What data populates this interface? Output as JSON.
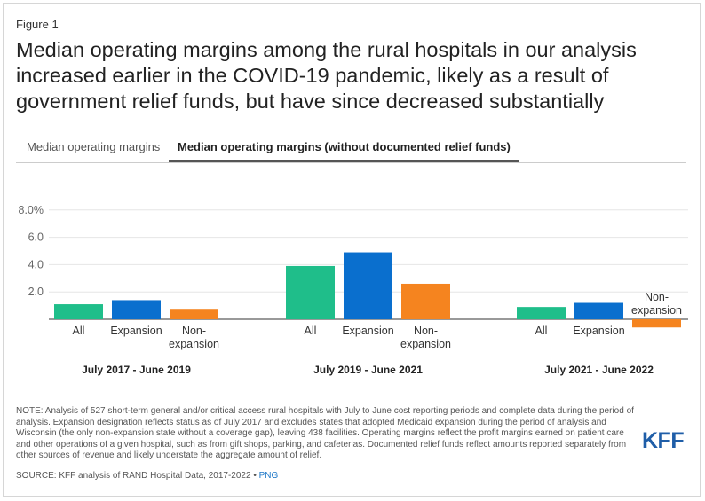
{
  "figure_label": "Figure 1",
  "title": "Median operating margins among the rural hospitals in our analysis increased earlier in the COVID-19 pandemic, likely as a result of government relief funds, but have since decreased substantially",
  "tabs": [
    {
      "label": "Median operating margins",
      "active": false
    },
    {
      "label": "Median operating margins (without documented relief funds)",
      "active": true
    }
  ],
  "chart_data": {
    "type": "bar",
    "y_ticks": [
      "8.0%",
      "6.0",
      "4.0",
      "2.0"
    ],
    "y_tick_values": [
      8,
      6,
      4,
      2
    ],
    "ylim": [
      -0.7,
      8.0
    ],
    "series_colors": {
      "All": "#1fbe8a",
      "Expansion": "#0a6fce",
      "Non-expansion": "#f5841f"
    },
    "groups": [
      {
        "label": "July 2017 - June 2019",
        "bars": [
          {
            "name": "All",
            "label": "All",
            "value": 1.1
          },
          {
            "name": "Expansion",
            "label": "Expansion",
            "value": 1.4
          },
          {
            "name": "Non-expansion",
            "label": "Non-\nexpansion",
            "value": 0.7
          }
        ]
      },
      {
        "label": "July 2019 - June 2021",
        "bars": [
          {
            "name": "All",
            "label": "All",
            "value": 3.9
          },
          {
            "name": "Expansion",
            "label": "Expansion",
            "value": 4.9
          },
          {
            "name": "Non-expansion",
            "label": "Non-\nexpansion",
            "value": 2.6
          }
        ]
      },
      {
        "label": "July 2021 - June 2022",
        "bars": [
          {
            "name": "All",
            "label": "All",
            "value": 0.9
          },
          {
            "name": "Expansion",
            "label": "Expansion",
            "value": 1.2
          },
          {
            "name": "Non-expansion",
            "label": "Non-\nexpansion",
            "value": -0.6
          }
        ]
      }
    ]
  },
  "note": "NOTE: Analysis of 527 short-term general and/or critical access rural hospitals with July to June cost reporting periods and complete data during the period of analysis. Expansion designation reflects status as of July 2017 and excludes states that adopted Medicaid expansion during the period of analysis and Wisconsin (the only non-expansion state without a coverage gap), leaving 438 facilities. Operating margins reflect the profit margins earned on patient care and other operations of a given hospital, such as from gift shops, parking, and cafeterias. Documented relief funds reflect amounts reported separately from other sources of revenue and likely understate the aggregate amount of relief.",
  "source": "SOURCE: KFF analysis of RAND Hospital Data, 2017-2022 •",
  "png_label": "PNG",
  "logo_text": "KFF"
}
